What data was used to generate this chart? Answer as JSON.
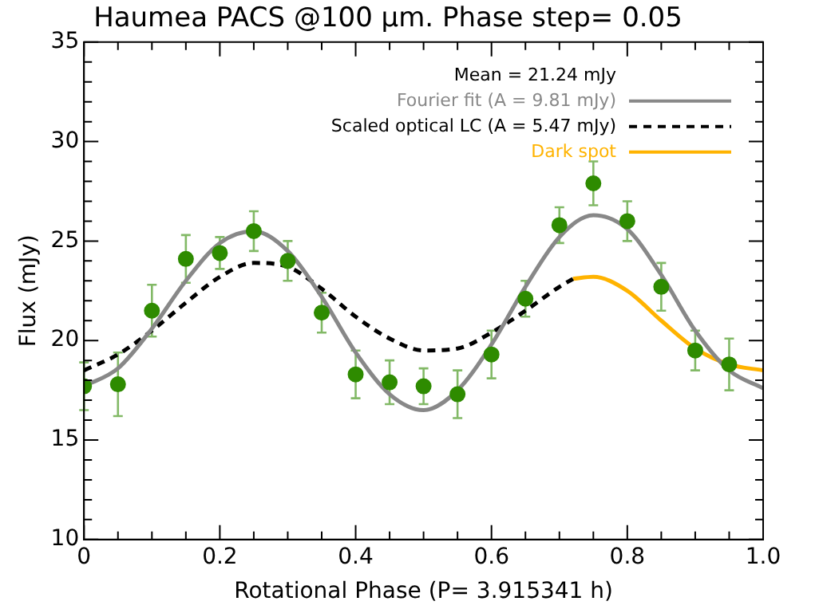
{
  "chart_data": {
    "type": "scatter",
    "title": "Haumea PACS @100 μm. Phase step= 0.05",
    "xlabel": "Rotational Phase (P= 3.915341 h)",
    "ylabel": "Flux (mJy)",
    "annotations": [
      "Mean = 21.24 mJy"
    ],
    "xlim": [
      0,
      1
    ],
    "ylim": [
      10,
      35
    ],
    "xticks": [
      0,
      {
        "value": 0.05,
        "label": null
      },
      {
        "value": 0.1,
        "label": null
      },
      {
        "value": 0.15,
        "label": null
      },
      {
        "value": 0.2,
        "label": "0.2"
      },
      {
        "value": 0.25,
        "label": null
      },
      {
        "value": 0.3,
        "label": null
      },
      {
        "value": 0.35,
        "label": null
      },
      {
        "value": 0.4,
        "label": "0.4"
      },
      {
        "value": 0.45,
        "label": null
      },
      {
        "value": 0.5,
        "label": null
      },
      {
        "value": 0.55,
        "label": null
      },
      {
        "value": 0.6,
        "label": "0.6"
      },
      {
        "value": 0.65,
        "label": null
      },
      {
        "value": 0.7,
        "label": null
      },
      {
        "value": 0.75,
        "label": null
      },
      {
        "value": 0.8,
        "label": "0.8"
      },
      {
        "value": 0.85,
        "label": null
      },
      {
        "value": 0.9,
        "label": null
      },
      {
        "value": 0.95,
        "label": null
      },
      {
        "value": 1,
        "label": "1.0"
      }
    ],
    "yticks": [
      10,
      {
        "value": 11,
        "label": null
      },
      {
        "value": 12,
        "label": null
      },
      {
        "value": 13,
        "label": null
      },
      {
        "value": 14,
        "label": null
      },
      15,
      {
        "value": 16,
        "label": null
      },
      {
        "value": 17,
        "label": null
      },
      {
        "value": 18,
        "label": null
      },
      {
        "value": 19,
        "label": null
      },
      20,
      {
        "value": 21,
        "label": null
      },
      {
        "value": 22,
        "label": null
      },
      {
        "value": 23,
        "label": null
      },
      {
        "value": 24,
        "label": null
      },
      25,
      {
        "value": 26,
        "label": null
      },
      {
        "value": 27,
        "label": null
      },
      {
        "value": 28,
        "label": null
      },
      {
        "value": 29,
        "label": null
      },
      30,
      {
        "value": 31,
        "label": null
      },
      {
        "value": 32,
        "label": null
      },
      {
        "value": 33,
        "label": null
      },
      {
        "value": 34,
        "label": null
      },
      35
    ],
    "grid": false,
    "legend": "top right",
    "series": [
      {
        "color": "#2e8b00",
        "marker": "circle",
        "x": [
          0,
          0.05,
          0.1,
          0.15,
          0.2,
          0.25,
          0.3,
          0.35,
          0.4,
          0.45,
          0.5,
          0.55,
          0.6,
          0.65,
          0.7,
          0.75,
          0.8,
          0.85,
          0.9,
          0.95
        ],
        "values": [
          17.7,
          17.8,
          21.5,
          24.1,
          24.4,
          25.5,
          24.0,
          21.4,
          18.3,
          17.9,
          17.7,
          17.3,
          19.3,
          22.1,
          25.8,
          27.9,
          26.0,
          22.7,
          19.5,
          18.8
        ],
        "errors": [
          1.2,
          1.6,
          1.3,
          1.2,
          0.8,
          1.0,
          1.0,
          1.0,
          1.2,
          1.1,
          0.9,
          1.2,
          1.2,
          0.9,
          0.9,
          1.1,
          1.0,
          1.2,
          1.0,
          1.3
        ]
      },
      {
        "type": "line",
        "name": "Fourier fit (A = 9.81 mJy)",
        "color": "#888888",
        "line_style": "solid",
        "marker": "none",
        "x": [
          0,
          0.05,
          0.1,
          0.15,
          0.2,
          0.25,
          0.3,
          0.35,
          0.4,
          0.45,
          0.5,
          0.55,
          0.6,
          0.65,
          0.7,
          0.75,
          0.8,
          0.85,
          0.9,
          0.95,
          1
        ],
        "values": [
          17.7,
          18.6,
          20.6,
          23.0,
          24.9,
          25.5,
          24.5,
          22.2,
          19.4,
          17.3,
          16.5,
          17.5,
          19.8,
          22.7,
          25.2,
          26.3,
          25.6,
          23.3,
          20.5,
          18.5,
          17.6
        ]
      },
      {
        "type": "line",
        "name": "Scaled optical LC (A = 5.47 mJy)",
        "color": "#000000",
        "line_style": "dashed",
        "marker": "none",
        "x": [
          0,
          0.05,
          0.1,
          0.15,
          0.2,
          0.25,
          0.3,
          0.35,
          0.4,
          0.45,
          0.5,
          0.55,
          0.6,
          0.65,
          0.7,
          0.72
        ],
        "values": [
          18.5,
          19.3,
          20.5,
          21.9,
          23.2,
          23.9,
          23.7,
          22.6,
          21.2,
          20.1,
          19.5,
          19.6,
          20.4,
          21.5,
          22.7,
          23.1
        ]
      },
      {
        "type": "line",
        "name": "Dark spot",
        "color": "#ffb300",
        "line_style": "solid",
        "marker": "none",
        "x": [
          0.72,
          0.75,
          0.8,
          0.85,
          0.9,
          0.95,
          1
        ],
        "values": [
          23.1,
          23.2,
          22.5,
          21.0,
          19.6,
          18.8,
          18.5
        ]
      }
    ]
  }
}
